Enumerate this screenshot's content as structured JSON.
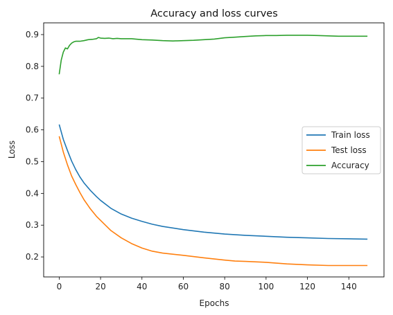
{
  "chart_data": {
    "type": "line",
    "title": "Accuracy and loss curves",
    "xlabel": "Epochs",
    "ylabel": "Loss",
    "xlim": [
      -7.5,
      157
    ],
    "ylim": [
      0.137,
      0.937
    ],
    "xticks": [
      0,
      20,
      40,
      60,
      80,
      100,
      120,
      140
    ],
    "yticks": [
      0.2,
      0.3,
      0.4,
      0.5,
      0.6,
      0.7,
      0.8,
      0.9
    ],
    "grid": false,
    "legend_position": "center-right",
    "series": [
      {
        "name": "Train loss",
        "color": "#1f77b4",
        "x": [
          0,
          2,
          4,
          6,
          8,
          10,
          12,
          15,
          18,
          20,
          25,
          30,
          35,
          40,
          45,
          50,
          60,
          70,
          80,
          90,
          100,
          110,
          120,
          130,
          140,
          149
        ],
        "y": [
          0.617,
          0.57,
          0.535,
          0.502,
          0.475,
          0.452,
          0.433,
          0.41,
          0.39,
          0.378,
          0.353,
          0.335,
          0.322,
          0.312,
          0.303,
          0.296,
          0.286,
          0.278,
          0.272,
          0.268,
          0.265,
          0.262,
          0.26,
          0.258,
          0.257,
          0.256
        ]
      },
      {
        "name": "Test loss",
        "color": "#ff7f0e",
        "x": [
          0,
          2,
          4,
          6,
          8,
          10,
          12,
          15,
          18,
          20,
          25,
          30,
          35,
          40,
          45,
          50,
          60,
          70,
          80,
          85,
          90,
          100,
          110,
          120,
          130,
          140,
          149
        ],
        "y": [
          0.58,
          0.53,
          0.49,
          0.455,
          0.428,
          0.403,
          0.38,
          0.352,
          0.328,
          0.315,
          0.283,
          0.26,
          0.242,
          0.228,
          0.218,
          0.212,
          0.205,
          0.197,
          0.19,
          0.187,
          0.186,
          0.183,
          0.178,
          0.175,
          0.173,
          0.173,
          0.173
        ]
      },
      {
        "name": "Accuracy",
        "color": "#2ca02c",
        "x": [
          0,
          1,
          2,
          3,
          4,
          5,
          6,
          7,
          8,
          10,
          12,
          14,
          16,
          18,
          19,
          20,
          22,
          24,
          26,
          28,
          30,
          35,
          40,
          45,
          50,
          55,
          60,
          65,
          70,
          75,
          80,
          85,
          90,
          95,
          100,
          105,
          110,
          115,
          120,
          125,
          130,
          135,
          140,
          145,
          149
        ],
        "y": [
          0.775,
          0.82,
          0.845,
          0.858,
          0.855,
          0.866,
          0.873,
          0.877,
          0.879,
          0.879,
          0.881,
          0.884,
          0.885,
          0.887,
          0.891,
          0.889,
          0.888,
          0.889,
          0.887,
          0.888,
          0.887,
          0.887,
          0.884,
          0.883,
          0.881,
          0.88,
          0.881,
          0.882,
          0.884,
          0.886,
          0.89,
          0.892,
          0.894,
          0.896,
          0.897,
          0.897,
          0.898,
          0.898,
          0.898,
          0.897,
          0.896,
          0.895,
          0.895,
          0.895,
          0.895
        ]
      }
    ]
  }
}
